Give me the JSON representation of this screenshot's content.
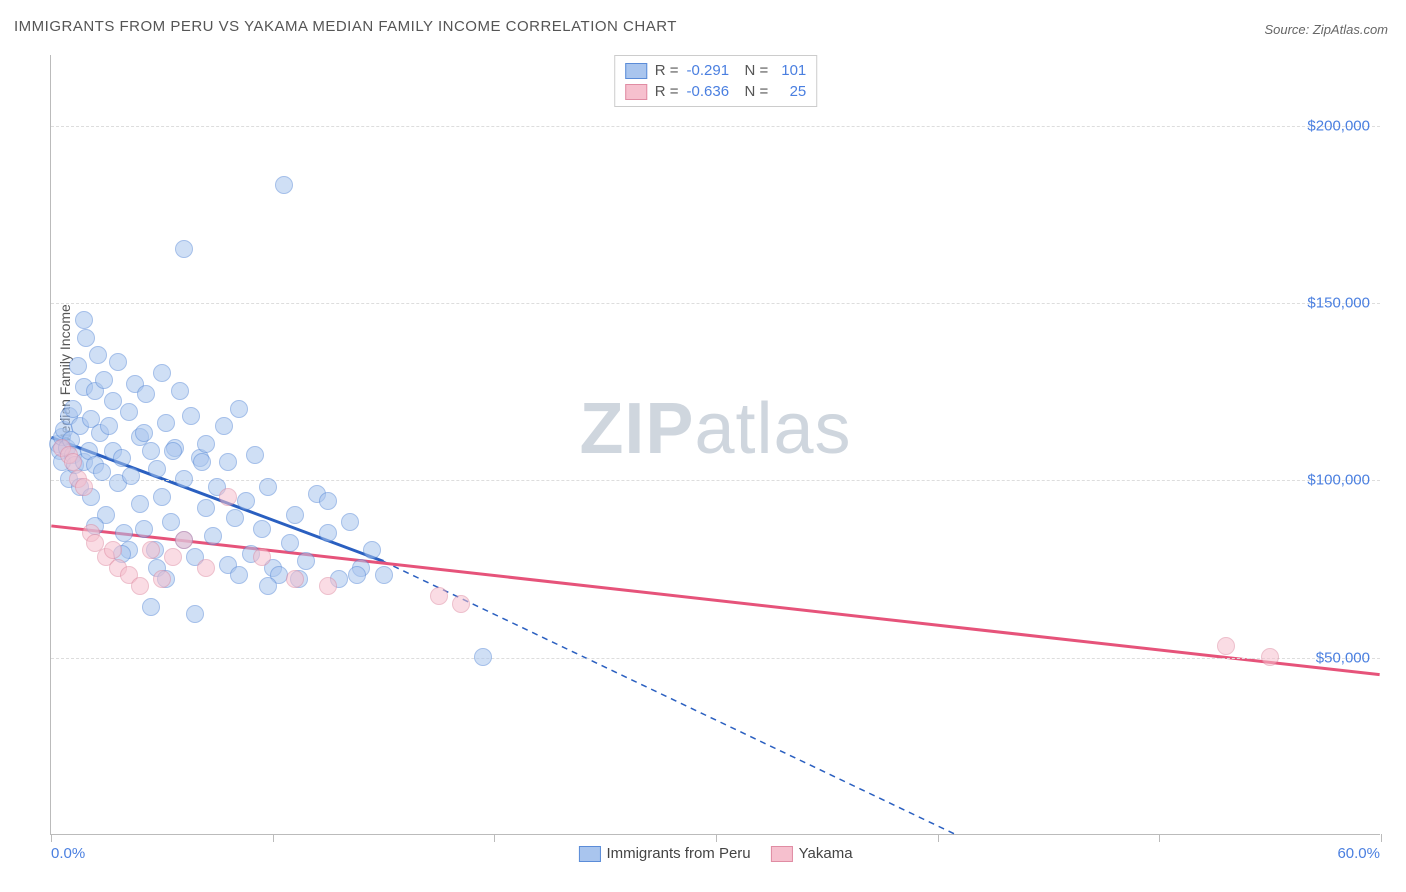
{
  "title": "IMMIGRANTS FROM PERU VS YAKAMA MEDIAN FAMILY INCOME CORRELATION CHART",
  "source": "Source: ZipAtlas.com",
  "watermark_bold": "ZIP",
  "watermark_rest": "atlas",
  "chart": {
    "type": "scatter",
    "background_color": "#ffffff",
    "grid_color": "#dddddd",
    "axis_color": "#bbbbbb",
    "y_label": "Median Family Income",
    "y_label_color": "#555555",
    "y_lim": [
      0,
      220000
    ],
    "y_ticks": [
      50000,
      100000,
      150000,
      200000
    ],
    "y_tick_labels": [
      "$50,000",
      "$100,000",
      "$150,000",
      "$200,000"
    ],
    "y_tick_color": "#4a7fe0",
    "x_lim": [
      0,
      60
    ],
    "x_ticks": [
      0,
      10,
      20,
      30,
      40,
      50,
      60
    ],
    "x_min_label": "0.0%",
    "x_max_label": "60.0%",
    "x_label_color": "#4a7fe0",
    "marker_radius": 9,
    "marker_opacity": 0.55,
    "series": [
      {
        "name": "Immigrants from Peru",
        "correlation_r": "-0.291",
        "correlation_n": "101",
        "fill_color": "#a9c5ee",
        "stroke_color": "#5b8cd8",
        "line_color": "#2a5fc0",
        "trend_solid": {
          "x1": 0,
          "y1": 112000,
          "x2": 15,
          "y2": 77000
        },
        "trend_dashed": {
          "x1": 15,
          "y1": 77000,
          "x2": 40.8,
          "y2": 0
        },
        "points": [
          [
            0.3,
            110000
          ],
          [
            0.4,
            108000
          ],
          [
            0.5,
            112000
          ],
          [
            0.5,
            105000
          ],
          [
            0.6,
            114000
          ],
          [
            0.7,
            109000
          ],
          [
            0.8,
            118000
          ],
          [
            0.8,
            100000
          ],
          [
            0.9,
            111000
          ],
          [
            1.0,
            120000
          ],
          [
            1.0,
            107000
          ],
          [
            1.1,
            104000
          ],
          [
            1.2,
            132000
          ],
          [
            1.3,
            98000
          ],
          [
            1.3,
            115000
          ],
          [
            1.5,
            126000
          ],
          [
            1.5,
            105000
          ],
          [
            1.6,
            140000
          ],
          [
            1.7,
            108000
          ],
          [
            1.8,
            117000
          ],
          [
            1.8,
            95000
          ],
          [
            2.0,
            125000
          ],
          [
            2.0,
            104000
          ],
          [
            2.1,
            135000
          ],
          [
            2.2,
            113000
          ],
          [
            2.3,
            102000
          ],
          [
            2.4,
            128000
          ],
          [
            2.5,
            90000
          ],
          [
            2.6,
            115000
          ],
          [
            2.8,
            108000
          ],
          [
            2.8,
            122000
          ],
          [
            3.0,
            99000
          ],
          [
            3.0,
            133000
          ],
          [
            3.2,
            106000
          ],
          [
            3.3,
            85000
          ],
          [
            3.5,
            119000
          ],
          [
            3.6,
            101000
          ],
          [
            3.8,
            127000
          ],
          [
            4.0,
            93000
          ],
          [
            4.0,
            112000
          ],
          [
            4.2,
            86000
          ],
          [
            4.3,
            124000
          ],
          [
            4.5,
            108000
          ],
          [
            4.7,
            80000
          ],
          [
            4.8,
            103000
          ],
          [
            5.0,
            130000
          ],
          [
            5.0,
            95000
          ],
          [
            5.2,
            116000
          ],
          [
            5.4,
            88000
          ],
          [
            5.6,
            109000
          ],
          [
            5.8,
            125000
          ],
          [
            6.0,
            83000
          ],
          [
            6.0,
            100000
          ],
          [
            6.3,
            118000
          ],
          [
            6.5,
            78000
          ],
          [
            6.7,
            106000
          ],
          [
            7.0,
            92000
          ],
          [
            7.0,
            110000
          ],
          [
            7.3,
            84000
          ],
          [
            7.5,
            98000
          ],
          [
            7.8,
            115000
          ],
          [
            8.0,
            76000
          ],
          [
            8.0,
            105000
          ],
          [
            8.3,
            89000
          ],
          [
            8.5,
            120000
          ],
          [
            8.8,
            94000
          ],
          [
            9.0,
            79000
          ],
          [
            9.2,
            107000
          ],
          [
            9.5,
            86000
          ],
          [
            9.8,
            98000
          ],
          [
            10.0,
            75000
          ],
          [
            10.3,
            73000
          ],
          [
            10.5,
            183000
          ],
          [
            10.8,
            82000
          ],
          [
            11.0,
            90000
          ],
          [
            11.5,
            77000
          ],
          [
            12.0,
            96000
          ],
          [
            12.5,
            85000
          ],
          [
            13.0,
            72000
          ],
          [
            13.5,
            88000
          ],
          [
            14.0,
            75000
          ],
          [
            14.5,
            80000
          ],
          [
            15.0,
            73000
          ],
          [
            1.5,
            145000
          ],
          [
            6.0,
            165000
          ],
          [
            4.2,
            113000
          ],
          [
            5.5,
            108000
          ],
          [
            6.8,
            105000
          ],
          [
            3.5,
            80000
          ],
          [
            4.8,
            75000
          ],
          [
            5.2,
            72000
          ],
          [
            6.5,
            62000
          ],
          [
            8.5,
            73000
          ],
          [
            9.8,
            70000
          ],
          [
            11.2,
            72000
          ],
          [
            12.5,
            94000
          ],
          [
            13.8,
            73000
          ],
          [
            2.0,
            87000
          ],
          [
            3.2,
            79000
          ],
          [
            4.5,
            64000
          ],
          [
            19.5,
            50000
          ]
        ]
      },
      {
        "name": "Yakama",
        "correlation_r": "-0.636",
        "correlation_n": "25",
        "fill_color": "#f6c0ce",
        "stroke_color": "#e08ca3",
        "line_color": "#e6537a",
        "trend_solid": {
          "x1": 0,
          "y1": 87000,
          "x2": 60,
          "y2": 45000
        },
        "points": [
          [
            0.5,
            109000
          ],
          [
            0.8,
            107000
          ],
          [
            1.0,
            105000
          ],
          [
            1.2,
            100000
          ],
          [
            1.5,
            98000
          ],
          [
            1.8,
            85000
          ],
          [
            2.0,
            82000
          ],
          [
            2.5,
            78000
          ],
          [
            2.8,
            80000
          ],
          [
            3.0,
            75000
          ],
          [
            3.5,
            73000
          ],
          [
            4.0,
            70000
          ],
          [
            4.5,
            80000
          ],
          [
            5.0,
            72000
          ],
          [
            5.5,
            78000
          ],
          [
            6.0,
            83000
          ],
          [
            7.0,
            75000
          ],
          [
            8.0,
            95000
          ],
          [
            9.5,
            78000
          ],
          [
            11.0,
            72000
          ],
          [
            12.5,
            70000
          ],
          [
            17.5,
            67000
          ],
          [
            18.5,
            65000
          ],
          [
            53.0,
            53000
          ],
          [
            55.0,
            50000
          ]
        ]
      }
    ],
    "legend_top": {
      "r_label": "R =",
      "n_label": "N =",
      "label_color": "#555555",
      "value_color": "#4a7fe0"
    },
    "legend_bottom_text_color": "#444444"
  }
}
